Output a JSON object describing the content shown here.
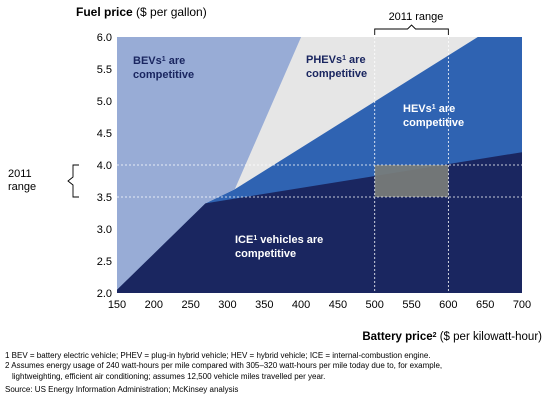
{
  "chart_data": {
    "type": "area",
    "title": "Fuel price ($ per gallon)",
    "xlabel": "Battery price2 ($ per kilowatt-hour)",
    "ylabel": "Fuel price ($ per gallon)",
    "xlim": [
      150,
      700
    ],
    "ylim": [
      2.0,
      6.0
    ],
    "x_ticks": [
      "150",
      "200",
      "250",
      "300",
      "350",
      "400",
      "450",
      "500",
      "550",
      "600",
      "650",
      "700"
    ],
    "y_ticks": [
      "2.0",
      "2.5",
      "3.0",
      "3.5",
      "4.0",
      "4.5",
      "5.0",
      "5.5",
      "6.0"
    ],
    "boundaries": {
      "ice_upper": [
        [
          150,
          2.05
        ],
        [
          270,
          3.4
        ],
        [
          700,
          4.2
        ]
      ],
      "hev_upper": [
        [
          270,
          3.4
        ],
        [
          310,
          3.62
        ],
        [
          640,
          6.0
        ]
      ],
      "bev_upper": [
        [
          270,
          3.4
        ],
        [
          310,
          3.62
        ],
        [
          400,
          6.0
        ]
      ]
    },
    "regions": [
      {
        "name": "BEVs are competitive",
        "color": "#98acd6"
      },
      {
        "name": "PHEVs are competitive",
        "color": "#e6e6e6"
      },
      {
        "name": "HEVs are competitive",
        "color": "#2f63b2"
      },
      {
        "name": "ICE vehicles are competitive",
        "color": "#1a2660"
      }
    ],
    "range_2011": {
      "x": [
        500,
        600
      ],
      "y": [
        3.5,
        4.0
      ],
      "highlight_color": "#7a7d7a"
    }
  },
  "title_bold": "Fuel price",
  "title_rest": " ($ per gallon)",
  "xlabel_bold": "Battery price",
  "xlabel_sup": "2",
  "xlabel_rest": " ($ per kilowatt-hour)",
  "range_top_label": "2011 range",
  "range_left_label_1": "2011",
  "range_left_label_2": "range",
  "labels": {
    "bev_1": "BEVs",
    "bev_sup": "1",
    "bev_2": " are",
    "bev_3": "competitive",
    "phev_1": "PHEVs",
    "phev_sup": "1",
    "phev_2": " are",
    "phev_3": "competitive",
    "hev_1": "HEVs",
    "hev_sup": "1",
    "hev_2": " are",
    "hev_3": "competitive",
    "ice_1": "ICE",
    "ice_sup": "1",
    "ice_2": " vehicles are",
    "ice_3": "competitive"
  },
  "footnote_1": "1 BEV = battery electric vehicle; PHEV = plug-in hybrid vehicle; HEV = hybrid vehicle; ICE = internal-combustion engine.",
  "footnote_2a": "2 Assumes energy usage of 240 watt-hours per mile compared with 305–320 watt-hours per mile today due to, for example,",
  "footnote_2b": "lightweighting, efficient air conditioning; assumes 12,500 vehicle miles travelled per year.",
  "source": "Source: US Energy Information Administration; McKinsey analysis",
  "colors": {
    "bev": "#98acd6",
    "phev": "#e6e6e6",
    "hev": "#2f63b2",
    "ice": "#1a2660",
    "highlight": "#7a7d7a",
    "dashed": "#ffffff",
    "bracket": "#000000"
  }
}
